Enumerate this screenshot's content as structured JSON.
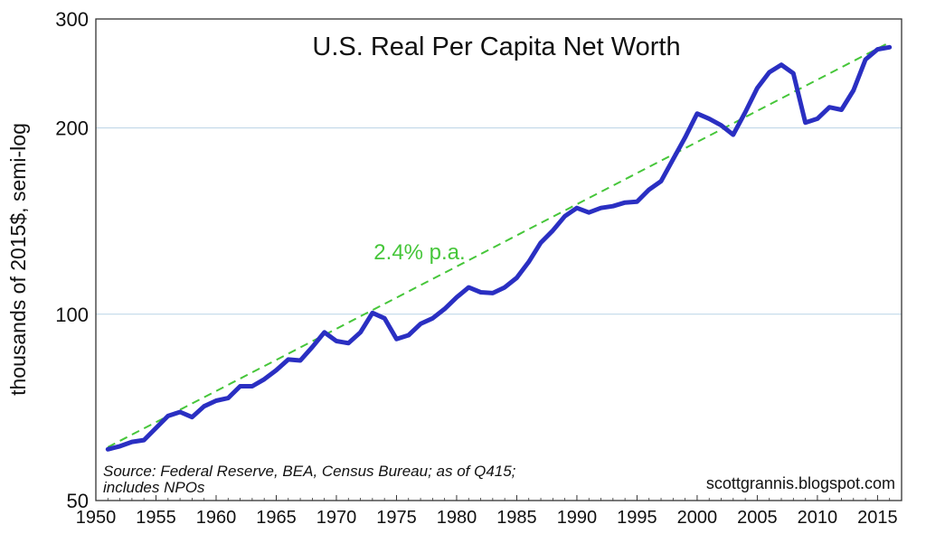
{
  "chart_data": {
    "type": "line",
    "title": "U.S. Real Per Capita Net Worth",
    "ylabel": "thousands of 2015$, semi-log",
    "xlabel": "",
    "yscale": "log",
    "ylim": [
      50,
      300
    ],
    "xlim": [
      1950,
      2017
    ],
    "grid": "horizontal",
    "yticks": [
      50,
      100,
      200,
      300
    ],
    "xticks": [
      1950,
      1955,
      1960,
      1965,
      1970,
      1975,
      1980,
      1985,
      1990,
      1995,
      2000,
      2005,
      2010,
      2015
    ],
    "series": [
      {
        "values_x": [
          1951,
          1952,
          1953,
          1954,
          1955,
          1956,
          1957,
          1958,
          1959,
          1960,
          1961,
          1962,
          1963,
          1964,
          1965,
          1966,
          1967,
          1968,
          1969,
          1970,
          1971,
          1972,
          1973,
          1974,
          1975,
          1976,
          1977,
          1978,
          1979,
          1980,
          1981,
          1982,
          1983,
          1984,
          1985,
          1986,
          1987,
          1988,
          1989,
          1990,
          1991,
          1992,
          1993,
          1994,
          1995,
          1996,
          1997,
          1998,
          1999,
          2000,
          2001,
          2002,
          2003,
          2004,
          2005,
          2006,
          2007,
          2008,
          2009,
          2010,
          2011,
          2012,
          2013,
          2014,
          2015,
          2016
        ],
        "values_y": [
          60.5,
          61.2,
          62.2,
          62.6,
          65.5,
          68.5,
          69.5,
          68.2,
          71.0,
          72.5,
          73.2,
          76.5,
          76.5,
          78.5,
          81.2,
          84.5,
          84.2,
          88.5,
          93.5,
          90.5,
          89.8,
          93.5,
          100.5,
          98.5,
          91.2,
          92.5,
          96.5,
          98.5,
          102.0,
          106.5,
          110.5,
          108.5,
          108.2,
          110.5,
          114.5,
          121.5,
          130.5,
          136.5,
          144.0,
          148.5,
          146.0,
          148.5,
          149.5,
          151.5,
          152.0,
          159.0,
          164.0,
          178.0,
          193.0,
          211.0,
          207.0,
          202.0,
          195.0,
          212.0,
          232.0,
          246.0,
          253.0,
          245.0,
          204.0,
          207.0,
          216.0,
          214.0,
          230.0,
          258.0,
          268.0,
          270.0
        ]
      }
    ],
    "trendline": {
      "label": "2.4% p.a.",
      "x": [
        1951,
        2016
      ],
      "y": [
        61.0,
        275.0
      ]
    },
    "colors": {
      "series": "#2a2fc2",
      "trend": "#46c63a",
      "grid": "#b9d3e5",
      "axis": "#333333"
    },
    "source_lines": [
      "Source: Federal Reserve, BEA, Census Bureau; as of Q415;",
      "includes NPOs"
    ],
    "credit": "scottgrannis.blogspot.com"
  }
}
